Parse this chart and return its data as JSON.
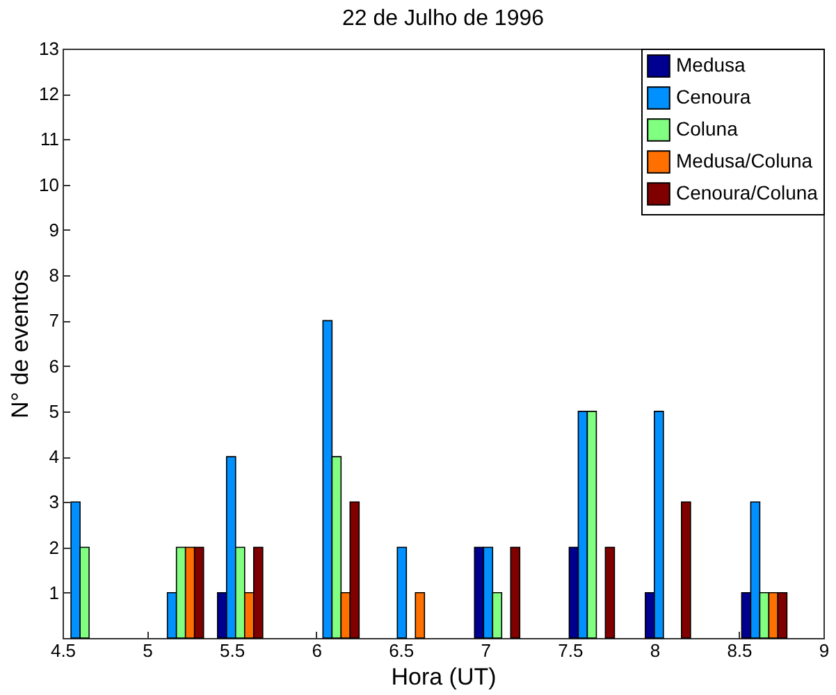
{
  "chart_data": {
    "type": "bar",
    "title": "22 de Julho de 1996",
    "xlabel": "Hora (UT)",
    "ylabel": "N° de eventos",
    "x": [
      4.63,
      5.2,
      5.55,
      6.12,
      6.56,
      7.07,
      7.63,
      8.08,
      8.65
    ],
    "series": [
      {
        "name": "Medusa",
        "color": "#000090",
        "values": [
          null,
          null,
          1,
          null,
          null,
          2,
          2,
          1,
          1
        ]
      },
      {
        "name": "Cenoura",
        "color": "#0090ff",
        "values": [
          3,
          1,
          4,
          7,
          2,
          2,
          5,
          5,
          3
        ]
      },
      {
        "name": "Coluna",
        "color": "#80ff80",
        "values": [
          2,
          2,
          2,
          4,
          null,
          1,
          5,
          null,
          1
        ]
      },
      {
        "name": "Medusa/Coluna",
        "color": "#ff7000",
        "values": [
          null,
          2,
          1,
          1,
          1,
          null,
          null,
          null,
          1
        ]
      },
      {
        "name": "Cenoura/Coluna",
        "color": "#800000",
        "values": [
          null,
          2,
          2,
          3,
          null,
          2,
          2,
          3,
          1
        ]
      }
    ],
    "xlim": [
      4.5,
      9
    ],
    "xticks": [
      4.5,
      5,
      5.5,
      6,
      6.5,
      7,
      7.5,
      8,
      8.5,
      9
    ],
    "ylim": [
      0,
      13
    ],
    "yticks": [
      {
        "value": 0,
        "label": null
      },
      1,
      2,
      3,
      4,
      5,
      6,
      7,
      8,
      9,
      10,
      11,
      12,
      13
    ],
    "grid": false,
    "legend": "top right"
  }
}
